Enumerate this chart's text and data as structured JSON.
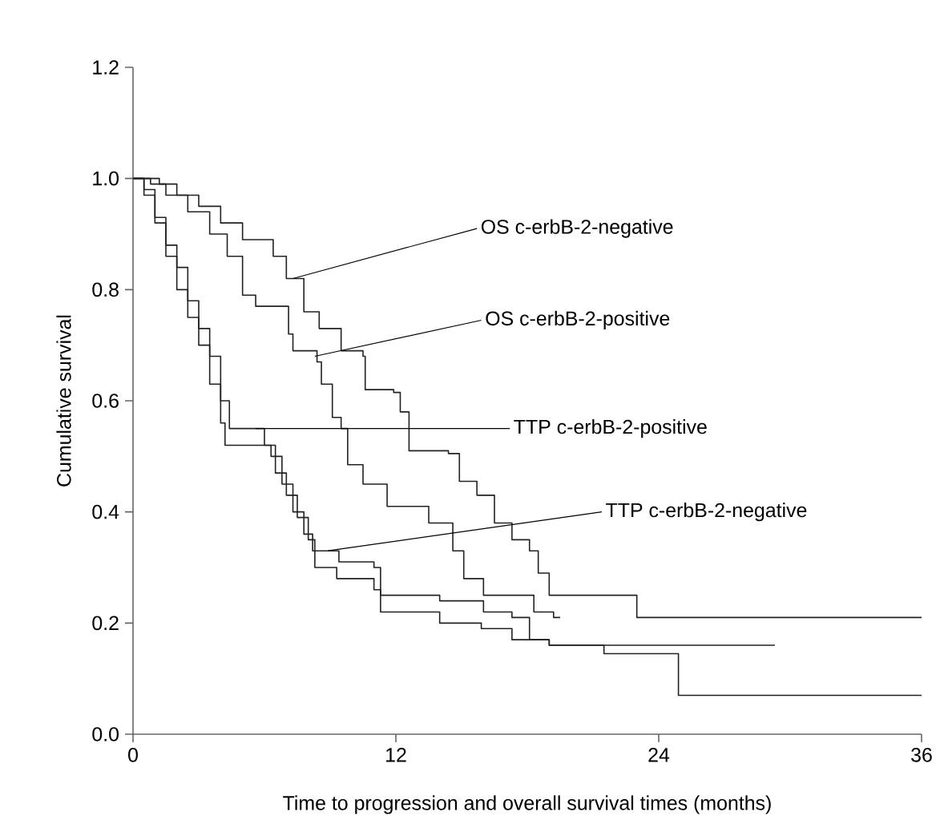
{
  "chart_data": {
    "type": "step",
    "xlabel": "Time to progression and overall survival times (months)",
    "ylabel": "Cumulative survival",
    "xlim": [
      0,
      36
    ],
    "xticks": [
      0,
      12,
      24,
      36
    ],
    "ylim": [
      0,
      1.2
    ],
    "yticks": [
      {
        "value": 0,
        "label": "0.0"
      },
      {
        "value": 0.2,
        "label": "0.2"
      },
      {
        "value": 0.4,
        "label": "0.4"
      },
      {
        "value": 0.6,
        "label": "0.6"
      },
      {
        "value": 0.8,
        "label": "0.8"
      },
      {
        "value": 1.0,
        "label": "1.0"
      },
      {
        "value": 1.2,
        "label": "1.2"
      }
    ],
    "series": [
      {
        "color": "#222222",
        "x": [
          0,
          1.2,
          2,
          3,
          4,
          5,
          6.4,
          7,
          7.8,
          8.5,
          9.5,
          10.5,
          10.6,
          11.9,
          12.2,
          12.6,
          14.4,
          14.9,
          15.7,
          16.5,
          17.3,
          18.1,
          18.5,
          19,
          23,
          36
        ],
        "values": [
          1,
          0.99,
          0.97,
          0.95,
          0.92,
          0.89,
          0.86,
          0.82,
          0.76,
          0.73,
          0.69,
          0.68,
          0.62,
          0.615,
          0.58,
          0.51,
          0.505,
          0.455,
          0.43,
          0.38,
          0.35,
          0.33,
          0.29,
          0.25,
          0.21,
          0.21
        ]
      },
      {
        "color": "#222222",
        "x": [
          0,
          0.8,
          1.5,
          2.5,
          3.5,
          4.3,
          5,
          5.6,
          7.1,
          7.3,
          8.4,
          8.6,
          9.1,
          9.5,
          9.8,
          10.5,
          11.6,
          13.5,
          14.6,
          15.1,
          16,
          18.3,
          19.2,
          19.5
        ],
        "values": [
          1,
          0.99,
          0.97,
          0.94,
          0.9,
          0.86,
          0.79,
          0.77,
          0.72,
          0.69,
          0.67,
          0.63,
          0.57,
          0.55,
          0.485,
          0.45,
          0.41,
          0.38,
          0.33,
          0.28,
          0.25,
          0.22,
          0.21,
          0.21
        ]
      },
      {
        "color": "#222222",
        "x": [
          0,
          0.5,
          1,
          1.5,
          2,
          2.5,
          3,
          3.5,
          4,
          4.4,
          5.6,
          6,
          6.5,
          7,
          7.5,
          8,
          8.3,
          9.3,
          11,
          11.3,
          13,
          14,
          15.9,
          17.3,
          19,
          29.3
        ],
        "values": [
          1,
          0.98,
          0.93,
          0.88,
          0.84,
          0.78,
          0.73,
          0.68,
          0.6,
          0.55,
          0.55,
          0.52,
          0.47,
          0.43,
          0.39,
          0.35,
          0.3,
          0.28,
          0.26,
          0.22,
          0.22,
          0.2,
          0.19,
          0.17,
          0.16,
          0.16
        ]
      },
      {
        "color": "#222222",
        "x": [
          0,
          0.5,
          1,
          1.5,
          2,
          2.5,
          3,
          3.5,
          4,
          4.2,
          5.8,
          6.3,
          6.8,
          7.3,
          7.8,
          8.2,
          9.4,
          11,
          11.3,
          14,
          16,
          17.3,
          18.1,
          19,
          21.5,
          24.9,
          36
        ],
        "values": [
          1,
          0.97,
          0.92,
          0.86,
          0.8,
          0.75,
          0.7,
          0.63,
          0.56,
          0.52,
          0.52,
          0.5,
          0.45,
          0.4,
          0.36,
          0.33,
          0.31,
          0.3,
          0.25,
          0.24,
          0.22,
          0.21,
          0.17,
          0.16,
          0.145,
          0.07,
          0.07
        ]
      }
    ],
    "annotations": [
      {
        "text": "OS c-erbB-2-negative",
        "x": 7.3,
        "y": 0.82
      },
      {
        "text": "OS c-erbB-2-positive",
        "x": 8.3,
        "y": 0.68
      },
      {
        "text": "TTP c-erbB-2-positive",
        "x": 5.6,
        "y": 0.55
      },
      {
        "text": "TTP c-erbB-2-negative",
        "x": 8.9,
        "y": 0.33
      }
    ]
  }
}
